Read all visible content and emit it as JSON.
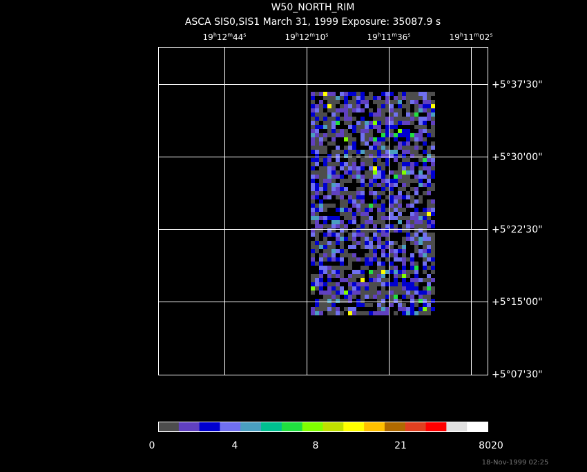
{
  "header": {
    "title": "W50_NORTH_RIM",
    "subtitle": "ASCA SIS0,SIS1 March 31, 1999 Exposure: 35087.9 s"
  },
  "ra_labels": [
    [
      "19",
      "h",
      "12",
      "m",
      "44",
      "s"
    ],
    [
      "19",
      "h",
      "12",
      "m",
      "10",
      "s"
    ],
    [
      "19",
      "h",
      "11",
      "m",
      "36",
      "s"
    ],
    [
      "19",
      "h",
      "11",
      "m",
      "02",
      "s"
    ]
  ],
  "dec_labels": [
    "+5°37'30\"",
    "+5°30'00\"",
    "+5°22'30\"",
    "+5°15'00\"",
    "+5°07'30\""
  ],
  "colorbar": {
    "colors": [
      "#4d4d4d",
      "#6040c0",
      "#0000d0",
      "#7070f0",
      "#4a9fc0",
      "#00c090",
      "#20e040",
      "#80ff00",
      "#c0e000",
      "#ffff00",
      "#ffc000",
      "#b06a00",
      "#e04020",
      "#ff0000",
      "#e0e0e0",
      "#ffffff"
    ],
    "labels": [
      "0",
      "4",
      "8",
      "21",
      "8020"
    ]
  },
  "timestamp": "18-Nov-1999 02:25"
}
